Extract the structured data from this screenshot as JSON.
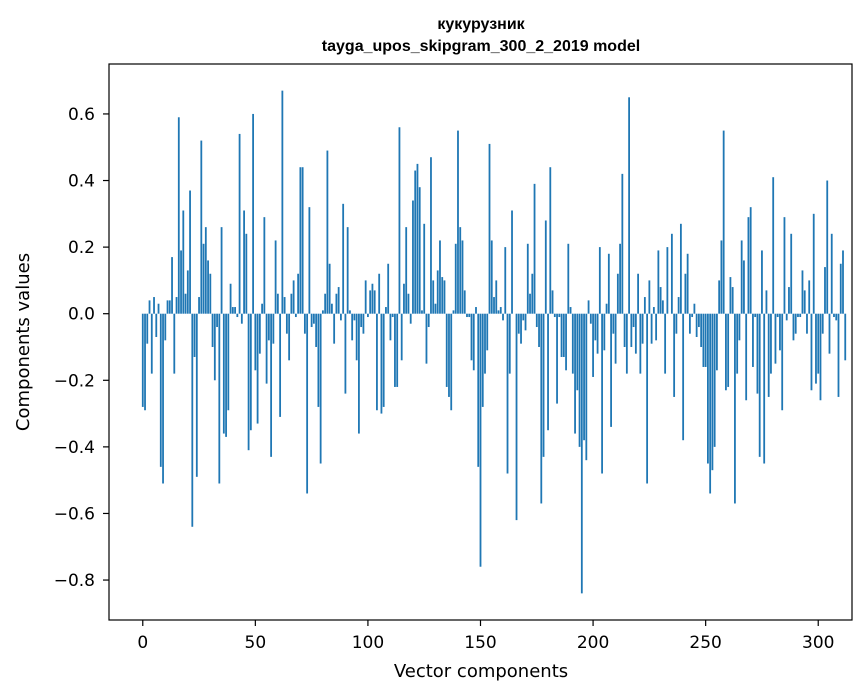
{
  "chart_data": {
    "type": "bar",
    "title": "кукурузник",
    "subtitle": "tayga_upos_skipgram_300_2_2019 model",
    "xlabel": "Vector components",
    "ylabel": "Components values",
    "xlim": [
      -15,
      315
    ],
    "ylim": [
      -0.92,
      0.75
    ],
    "xticks": [
      0,
      50,
      100,
      150,
      200,
      250,
      300
    ],
    "yticks": [
      -0.8,
      -0.6,
      -0.4,
      -0.2,
      0.0,
      0.2,
      0.4,
      0.6
    ],
    "ytick_labels": [
      "−0.8",
      "−0.6",
      "−0.4",
      "−0.2",
      "0.0",
      "0.2",
      "0.4",
      "0.6"
    ],
    "bar_color": "#1f77b4",
    "values": [
      -0.28,
      -0.29,
      -0.09,
      0.04,
      -0.18,
      0.05,
      -0.07,
      0.03,
      -0.46,
      -0.51,
      -0.08,
      0.04,
      0.04,
      0.17,
      -0.18,
      0.05,
      0.59,
      0.19,
      0.31,
      0.06,
      0.13,
      0.37,
      -0.64,
      -0.13,
      -0.49,
      0.05,
      0.52,
      0.21,
      0.26,
      0.16,
      0.12,
      -0.1,
      -0.2,
      -0.04,
      -0.51,
      0.26,
      -0.36,
      -0.37,
      -0.29,
      0.09,
      0.02,
      0.02,
      -0.01,
      0.54,
      -0.03,
      0.31,
      0.24,
      -0.41,
      -0.35,
      0.6,
      -0.17,
      -0.33,
      -0.12,
      0.03,
      0.29,
      -0.21,
      -0.08,
      -0.43,
      -0.09,
      0.22,
      0.06,
      -0.31,
      0.67,
      0.05,
      -0.06,
      -0.14,
      0.06,
      0.1,
      -0.01,
      0.12,
      0.44,
      0.44,
      -0.06,
      -0.54,
      0.32,
      -0.04,
      -0.03,
      -0.1,
      -0.28,
      -0.45,
      0.01,
      0.06,
      0.49,
      0.15,
      0.03,
      -0.09,
      0.06,
      0.08,
      -0.02,
      0.33,
      -0.24,
      0.26,
      0.01,
      -0.08,
      -0.02,
      -0.14,
      -0.36,
      -0.04,
      -0.06,
      0.1,
      -0.01,
      0.07,
      0.09,
      0.07,
      -0.29,
      0.12,
      -0.3,
      -0.28,
      0.02,
      0.15,
      -0.08,
      -0.01,
      -0.22,
      -0.22,
      0.56,
      -0.14,
      0.09,
      0.26,
      0.06,
      -0.03,
      0.34,
      0.43,
      0.45,
      0.38,
      0.01,
      0.27,
      -0.15,
      -0.04,
      0.47,
      0.1,
      0.03,
      0.13,
      0.22,
      0.11,
      0.1,
      -0.22,
      -0.25,
      -0.29,
      0.01,
      0.21,
      0.55,
      0.26,
      0.22,
      0.07,
      -0.01,
      -0.01,
      -0.14,
      -0.17,
      0.02,
      -0.46,
      -0.76,
      -0.28,
      -0.18,
      -0.11,
      0.51,
      0.22,
      0.05,
      0.1,
      0.01,
      0.02,
      -0.02,
      0.2,
      -0.48,
      -0.18,
      0.31,
      0.0,
      -0.62,
      -0.06,
      -0.09,
      -0.02,
      -0.05,
      0.21,
      0.06,
      0.12,
      0.39,
      -0.04,
      -0.1,
      -0.57,
      -0.43,
      0.28,
      -0.35,
      0.44,
      0.07,
      -0.01,
      -0.27,
      -0.01,
      -0.13,
      -0.13,
      -0.17,
      0.21,
      0.02,
      -0.18,
      -0.36,
      -0.23,
      -0.4,
      -0.84,
      -0.38,
      -0.44,
      0.04,
      -0.03,
      -0.19,
      -0.08,
      -0.12,
      0.2,
      -0.48,
      -0.11,
      0.03,
      0.18,
      -0.34,
      -0.06,
      -0.15,
      0.12,
      0.21,
      0.42,
      -0.1,
      -0.18,
      0.65,
      -0.1,
      -0.04,
      -0.12,
      0.12,
      -0.18,
      -0.09,
      0.05,
      -0.51,
      0.1,
      -0.09,
      0.02,
      -0.08,
      0.19,
      0.08,
      0.04,
      -0.18,
      0.2,
      0.0,
      0.24,
      -0.25,
      -0.06,
      0.05,
      0.27,
      -0.38,
      0.12,
      0.18,
      -0.06,
      -0.01,
      0.03,
      -0.07,
      -0.04,
      -0.1,
      -0.16,
      -0.16,
      -0.45,
      -0.54,
      -0.47,
      -0.4,
      -0.17,
      0.1,
      0.22,
      0.55,
      -0.23,
      -0.22,
      0.11,
      0.08,
      -0.57,
      -0.18,
      -0.08,
      0.22,
      0.16,
      -0.26,
      0.29,
      0.32,
      -0.16,
      -0.01,
      -0.24,
      -0.43,
      0.19,
      -0.45,
      0.07,
      -0.25,
      -0.18,
      0.41,
      -0.15,
      -0.01,
      -0.11,
      -0.29,
      0.29,
      -0.02,
      0.08,
      0.24,
      -0.08,
      -0.06,
      -0.01,
      -0.01,
      0.13,
      0.07,
      -0.06,
      0.1,
      -0.23,
      0.3,
      -0.21,
      -0.18,
      -0.26,
      -0.06,
      0.14,
      0.4,
      -0.12,
      0.24,
      -0.01,
      -0.02,
      -0.25,
      0.15,
      0.19,
      -0.14
    ]
  }
}
